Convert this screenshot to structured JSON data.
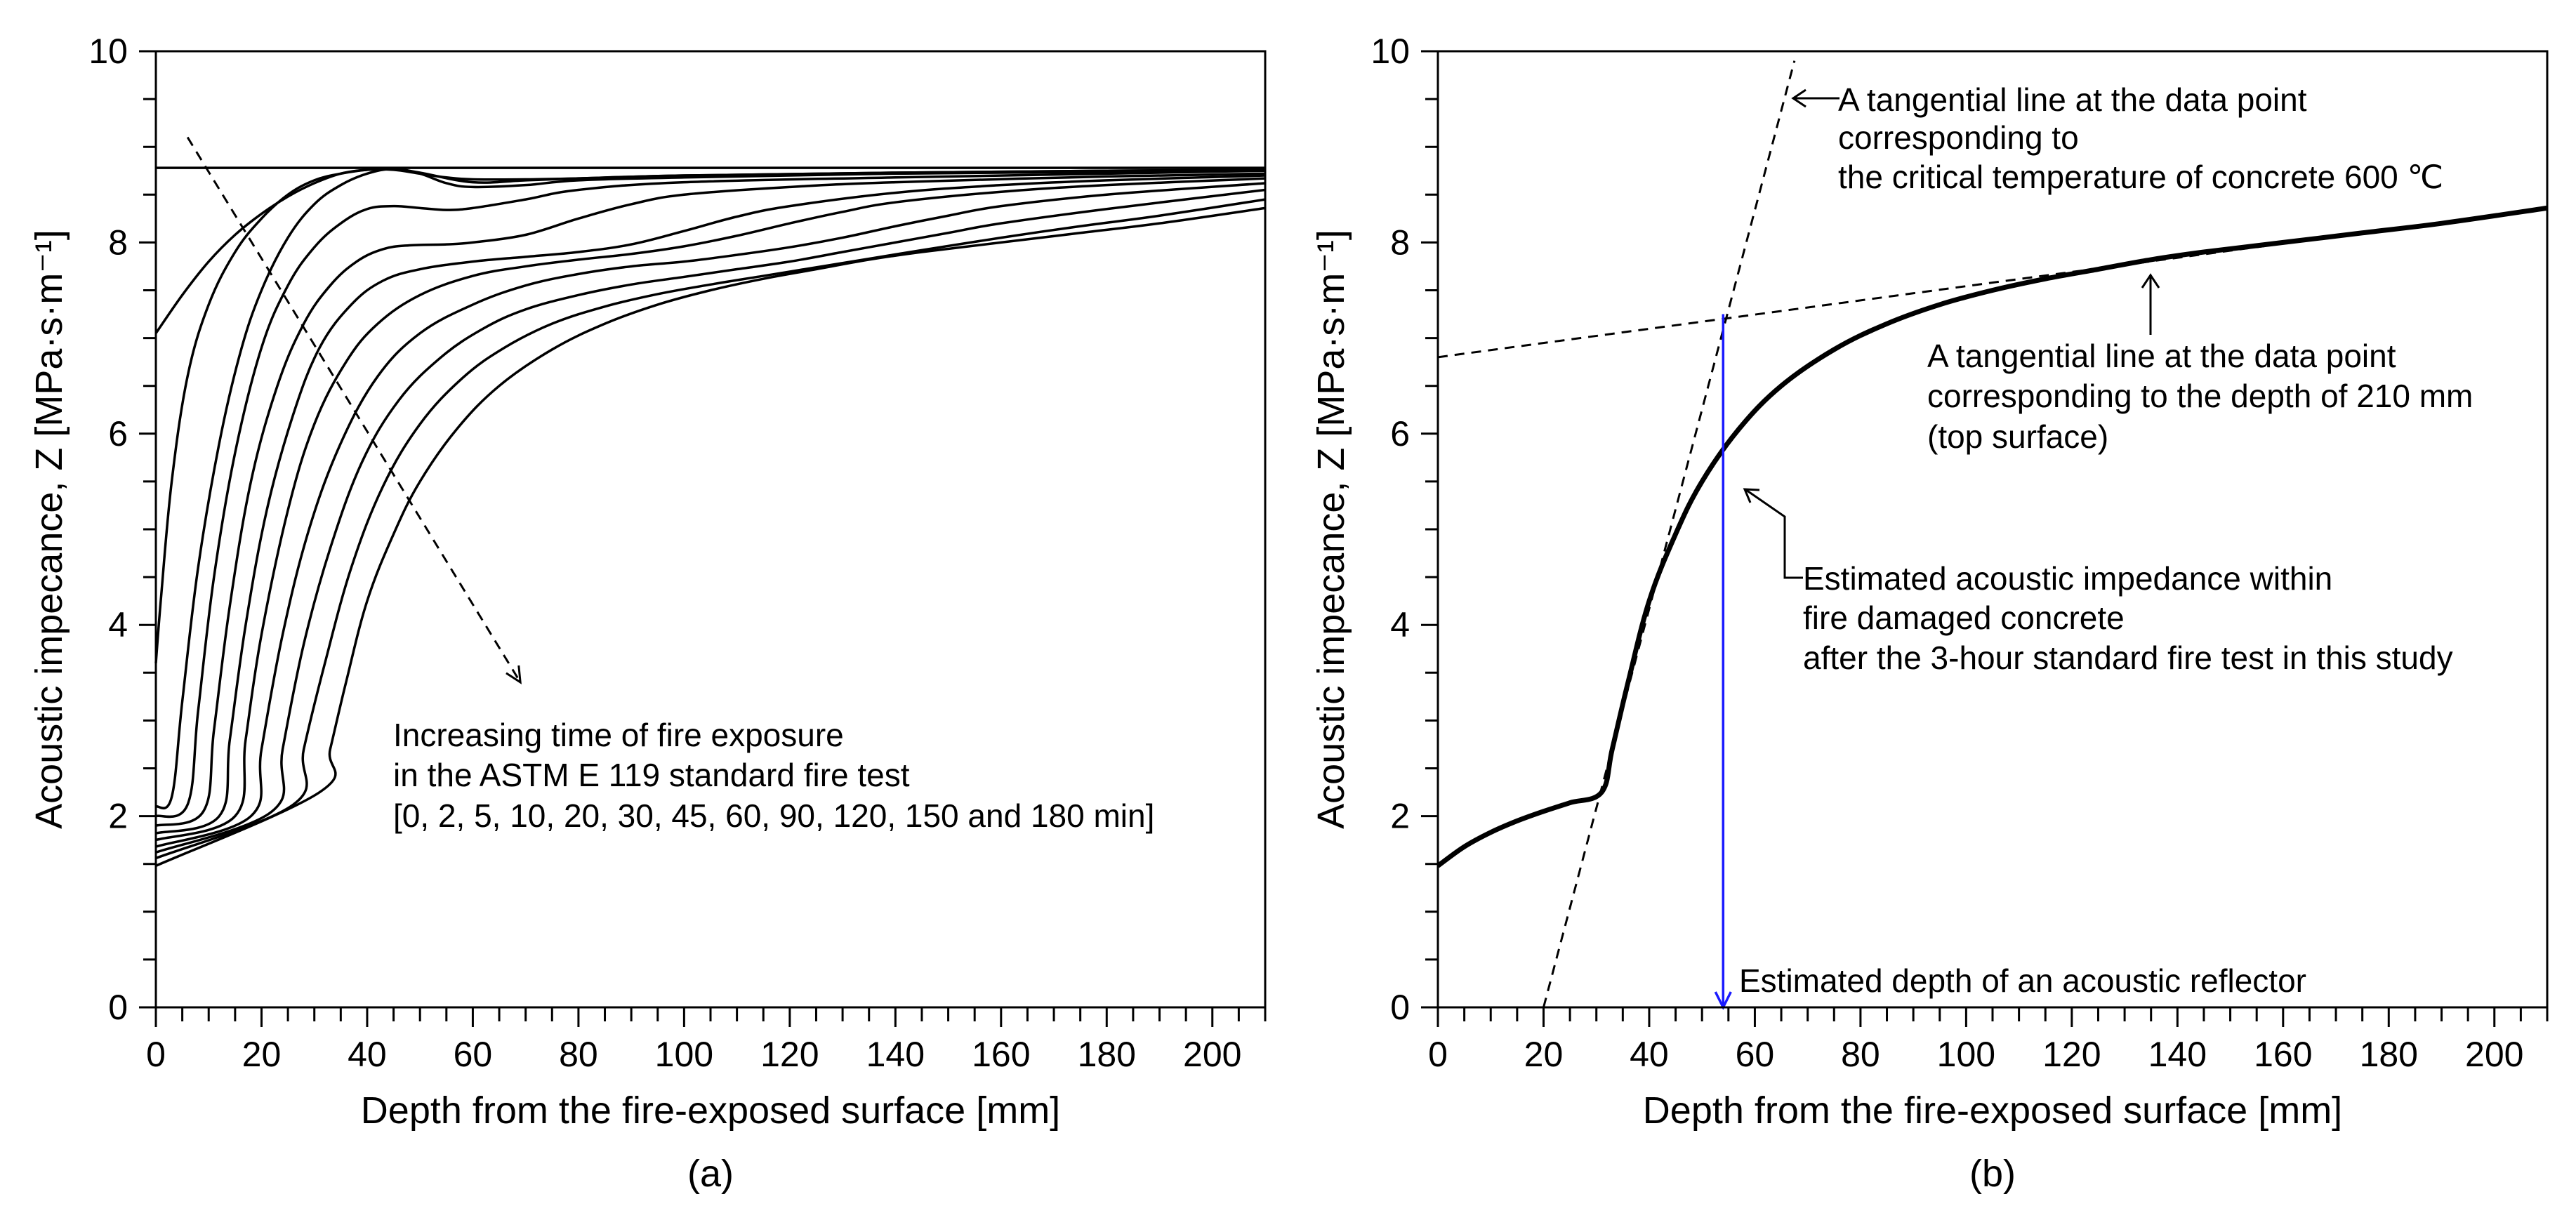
{
  "chart_data": [
    {
      "type": "line",
      "panel": "(a)",
      "xlabel": "Depth from the fire-exposed surface [mm]",
      "ylabel": "Acoustic impecance, Z [MPa·s·m⁻¹]",
      "xlim": [
        0,
        210
      ],
      "ylim": [
        0,
        10
      ],
      "xticks": [
        0,
        20,
        40,
        60,
        80,
        100,
        120,
        140,
        160,
        180,
        200
      ],
      "yticks": [
        0,
        2,
        4,
        6,
        8,
        10
      ],
      "annotation": [
        "Increasing time of fire exposure",
        "in the ASTM E 119 standard fire test",
        "[0, 2, 5, 10, 20, 30, 45, 60, 90, 120, 150 and 180 min]"
      ],
      "arrow": {
        "from": [
          6,
          9.1
        ],
        "to": [
          69,
          3.4
        ]
      },
      "series": [
        {
          "name": "0 min",
          "x": [
            0,
            210
          ],
          "y": [
            8.78,
            8.78
          ]
        },
        {
          "name": "2 min",
          "x": [
            0,
            5,
            10,
            15,
            20,
            25,
            30,
            35,
            40,
            45,
            50,
            55,
            60,
            70,
            80,
            100,
            140,
            180,
            210
          ],
          "y": [
            7.05,
            7.45,
            7.8,
            8.08,
            8.3,
            8.48,
            8.62,
            8.72,
            8.76,
            8.76,
            8.72,
            8.68,
            8.66,
            8.66,
            8.67,
            8.7,
            8.73,
            8.75,
            8.76
          ]
        },
        {
          "name": "5 min",
          "x": [
            0,
            1,
            3,
            6,
            10,
            15,
            20,
            25,
            30,
            35,
            40,
            45,
            50,
            60,
            70,
            80,
            100,
            140,
            180,
            210
          ],
          "y": [
            3.6,
            4.3,
            5.5,
            6.6,
            7.35,
            7.9,
            8.25,
            8.5,
            8.65,
            8.72,
            8.76,
            8.77,
            8.73,
            8.63,
            8.65,
            8.67,
            8.7,
            8.73,
            8.75,
            8.76
          ]
        },
        {
          "name": "10 min",
          "x": [
            0,
            3,
            5,
            8,
            12,
            16,
            20,
            25,
            30,
            35,
            40,
            45,
            50,
            55,
            60,
            70,
            80,
            100,
            140,
            180,
            210
          ],
          "y": [
            2.1,
            2.2,
            3.2,
            4.6,
            5.9,
            6.85,
            7.5,
            8.05,
            8.4,
            8.6,
            8.72,
            8.77,
            8.72,
            8.62,
            8.58,
            8.6,
            8.65,
            8.68,
            8.72,
            8.74,
            8.76
          ]
        },
        {
          "name": "20 min",
          "x": [
            0,
            6,
            8,
            11,
            15,
            20,
            25,
            30,
            35,
            40,
            45,
            50,
            55,
            60,
            70,
            80,
            100,
            140,
            180,
            210
          ],
          "y": [
            2.0,
            2.12,
            3.1,
            4.5,
            5.8,
            6.9,
            7.55,
            7.95,
            8.2,
            8.35,
            8.38,
            8.36,
            8.34,
            8.36,
            8.45,
            8.55,
            8.63,
            8.68,
            8.72,
            8.75
          ]
        },
        {
          "name": "30 min",
          "x": [
            0,
            9,
            11,
            14,
            18,
            23,
            28,
            33,
            38,
            43,
            48,
            55,
            60,
            70,
            80,
            90,
            100,
            120,
            140,
            180,
            210
          ],
          "y": [
            1.9,
            2.05,
            2.9,
            4.2,
            5.5,
            6.5,
            7.15,
            7.55,
            7.8,
            7.93,
            7.97,
            7.98,
            8.0,
            8.08,
            8.25,
            8.4,
            8.5,
            8.58,
            8.63,
            8.69,
            8.72
          ]
        },
        {
          "name": "45 min",
          "x": [
            0,
            12,
            14,
            17,
            21,
            26,
            31,
            37,
            43,
            50,
            60,
            70,
            80,
            90,
            100,
            110,
            120,
            140,
            160,
            180,
            210
          ],
          "y": [
            1.82,
            2.0,
            2.8,
            4.0,
            5.2,
            6.2,
            6.9,
            7.35,
            7.6,
            7.72,
            7.8,
            7.85,
            7.9,
            7.98,
            8.12,
            8.27,
            8.38,
            8.52,
            8.6,
            8.65,
            8.7
          ]
        },
        {
          "name": "60 min",
          "x": [
            0,
            15,
            17,
            20,
            25,
            30,
            36,
            42,
            50,
            60,
            70,
            80,
            90,
            100,
            110,
            120,
            130,
            140,
            160,
            180,
            210
          ],
          "y": [
            1.75,
            2.0,
            2.8,
            3.9,
            5.2,
            6.1,
            6.75,
            7.15,
            7.45,
            7.65,
            7.75,
            7.82,
            7.88,
            7.96,
            8.07,
            8.2,
            8.32,
            8.42,
            8.53,
            8.6,
            8.67
          ]
        },
        {
          "name": "90 min",
          "x": [
            0,
            18,
            20,
            24,
            29,
            35,
            42,
            50,
            60,
            70,
            80,
            90,
            100,
            110,
            120,
            130,
            140,
            150,
            160,
            180,
            210
          ],
          "y": [
            1.68,
            2.0,
            2.7,
            3.9,
            5.0,
            5.9,
            6.6,
            7.05,
            7.35,
            7.55,
            7.67,
            7.75,
            7.8,
            7.87,
            7.95,
            8.05,
            8.17,
            8.28,
            8.38,
            8.5,
            8.62
          ]
        },
        {
          "name": "120 min",
          "x": [
            0,
            22,
            24,
            28,
            33,
            39,
            46,
            54,
            62,
            70,
            80,
            90,
            100,
            110,
            120,
            130,
            140,
            150,
            160,
            180,
            210
          ],
          "y": [
            1.62,
            2.05,
            2.7,
            3.8,
            4.8,
            5.7,
            6.35,
            6.8,
            7.1,
            7.3,
            7.45,
            7.56,
            7.64,
            7.72,
            7.8,
            7.9,
            8.0,
            8.1,
            8.2,
            8.35,
            8.55
          ]
        },
        {
          "name": "150 min",
          "x": [
            0,
            26,
            28,
            32,
            37,
            43,
            50,
            58,
            66,
            75,
            85,
            95,
            105,
            115,
            125,
            135,
            145,
            160,
            175,
            190,
            210
          ],
          "y": [
            1.56,
            2.12,
            2.7,
            3.6,
            4.6,
            5.45,
            6.1,
            6.58,
            6.9,
            7.15,
            7.33,
            7.46,
            7.56,
            7.65,
            7.74,
            7.83,
            7.92,
            8.05,
            8.17,
            8.28,
            8.45
          ]
        },
        {
          "name": "180 min",
          "x": [
            0,
            31,
            33,
            36,
            40,
            45,
            50,
            57,
            65,
            75,
            85,
            95,
            105,
            115,
            125,
            135,
            145,
            160,
            175,
            190,
            210
          ],
          "y": [
            1.48,
            2.25,
            2.7,
            3.4,
            4.25,
            4.95,
            5.5,
            6.05,
            6.5,
            6.88,
            7.15,
            7.35,
            7.5,
            7.62,
            7.72,
            7.82,
            7.9,
            8.0,
            8.1,
            8.2,
            8.36
          ]
        }
      ]
    },
    {
      "type": "line",
      "panel": "(b)",
      "xlabel": "Depth from the fire-exposed surface [mm]",
      "ylabel": "Acoustic impecance, Z [MPa·s·m⁻¹]",
      "xlim": [
        0,
        210
      ],
      "ylim": [
        0,
        10
      ],
      "xticks": [
        0,
        20,
        40,
        60,
        80,
        100,
        120,
        140,
        160,
        180,
        200
      ],
      "yticks": [
        0,
        2,
        4,
        6,
        8,
        10
      ],
      "series": [
        {
          "name": "Estimated acoustic impedance (180 min)",
          "x": [
            0,
            5,
            10,
            15,
            20,
            25,
            31,
            33,
            36,
            40,
            45,
            50,
            57,
            65,
            75,
            85,
            95,
            105,
            115,
            125,
            135,
            145,
            160,
            175,
            190,
            210
          ],
          "y": [
            1.48,
            1.68,
            1.83,
            1.95,
            2.05,
            2.14,
            2.25,
            2.7,
            3.4,
            4.25,
            4.95,
            5.5,
            6.05,
            6.5,
            6.88,
            7.15,
            7.35,
            7.5,
            7.62,
            7.72,
            7.82,
            7.9,
            8.0,
            8.1,
            8.2,
            8.36
          ]
        }
      ],
      "tangent_lines": [
        {
          "name": "tangent at 600 °C point",
          "x": [
            20,
            67.5
          ],
          "y": [
            0,
            9.9
          ]
        },
        {
          "name": "tangent at 210 mm",
          "x": [
            0,
            210
          ],
          "y": [
            6.8,
            8.36
          ]
        }
      ],
      "reflector_depth": {
        "x": 54,
        "y_from": 7.25,
        "y_to": 0
      },
      "annotations": {
        "tangent_600": [
          "A tangential line at the data point",
          "corresponding to",
          "the critical temperature of concrete 600 ℃"
        ],
        "tangent_210": [
          "A tangential line at the data point",
          "corresponding to the depth of 210 mm",
          "(top surface)"
        ],
        "estimated_impedance": [
          "Estimated acoustic impedance within",
          "fire damaged concrete",
          "after the 3-hour standard fire test in this study"
        ],
        "reflector": "Estimated depth of an acoustic reflector"
      }
    }
  ]
}
